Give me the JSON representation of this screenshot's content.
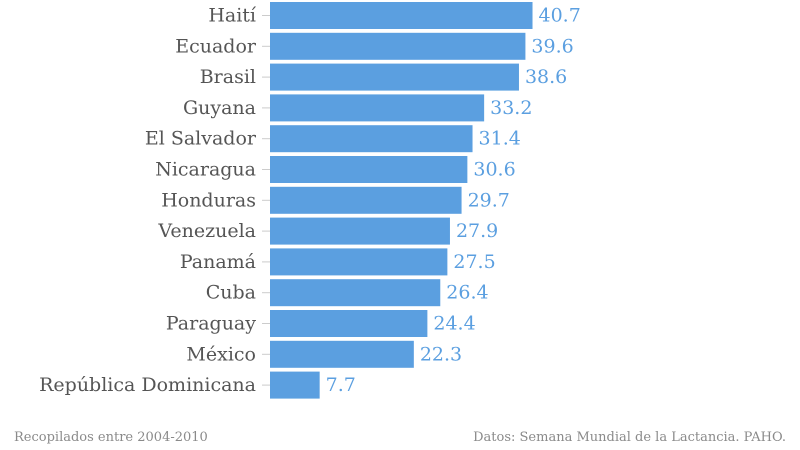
{
  "chart_data": {
    "type": "bar",
    "orientation": "horizontal",
    "categories": [
      "Haití",
      "Ecuador",
      "Brasil",
      "Guyana",
      "El Salvador",
      "Nicaragua",
      "Honduras",
      "Venezuela",
      "Panamá",
      "Cuba",
      "Paraguay",
      "México",
      "República Dominicana"
    ],
    "values": [
      40.7,
      39.6,
      38.6,
      33.2,
      31.4,
      30.6,
      29.7,
      27.9,
      27.5,
      26.4,
      24.4,
      22.3,
      7.7
    ],
    "value_labels": [
      "40.7",
      "39.6",
      "38.6",
      "33.2",
      "31.4",
      "30.6",
      "29.7",
      "27.9",
      "27.5",
      "26.4",
      "24.4",
      "22.3",
      "7.7"
    ],
    "bar_color": "#5b9fe0",
    "title": "",
    "xlabel": "",
    "ylabel": "",
    "grid": false,
    "legend": "none"
  },
  "footer": {
    "left": "Recopilados entre 2004-2010",
    "right": "Datos: Semana Mundial de la Lactancia. PAHO."
  }
}
